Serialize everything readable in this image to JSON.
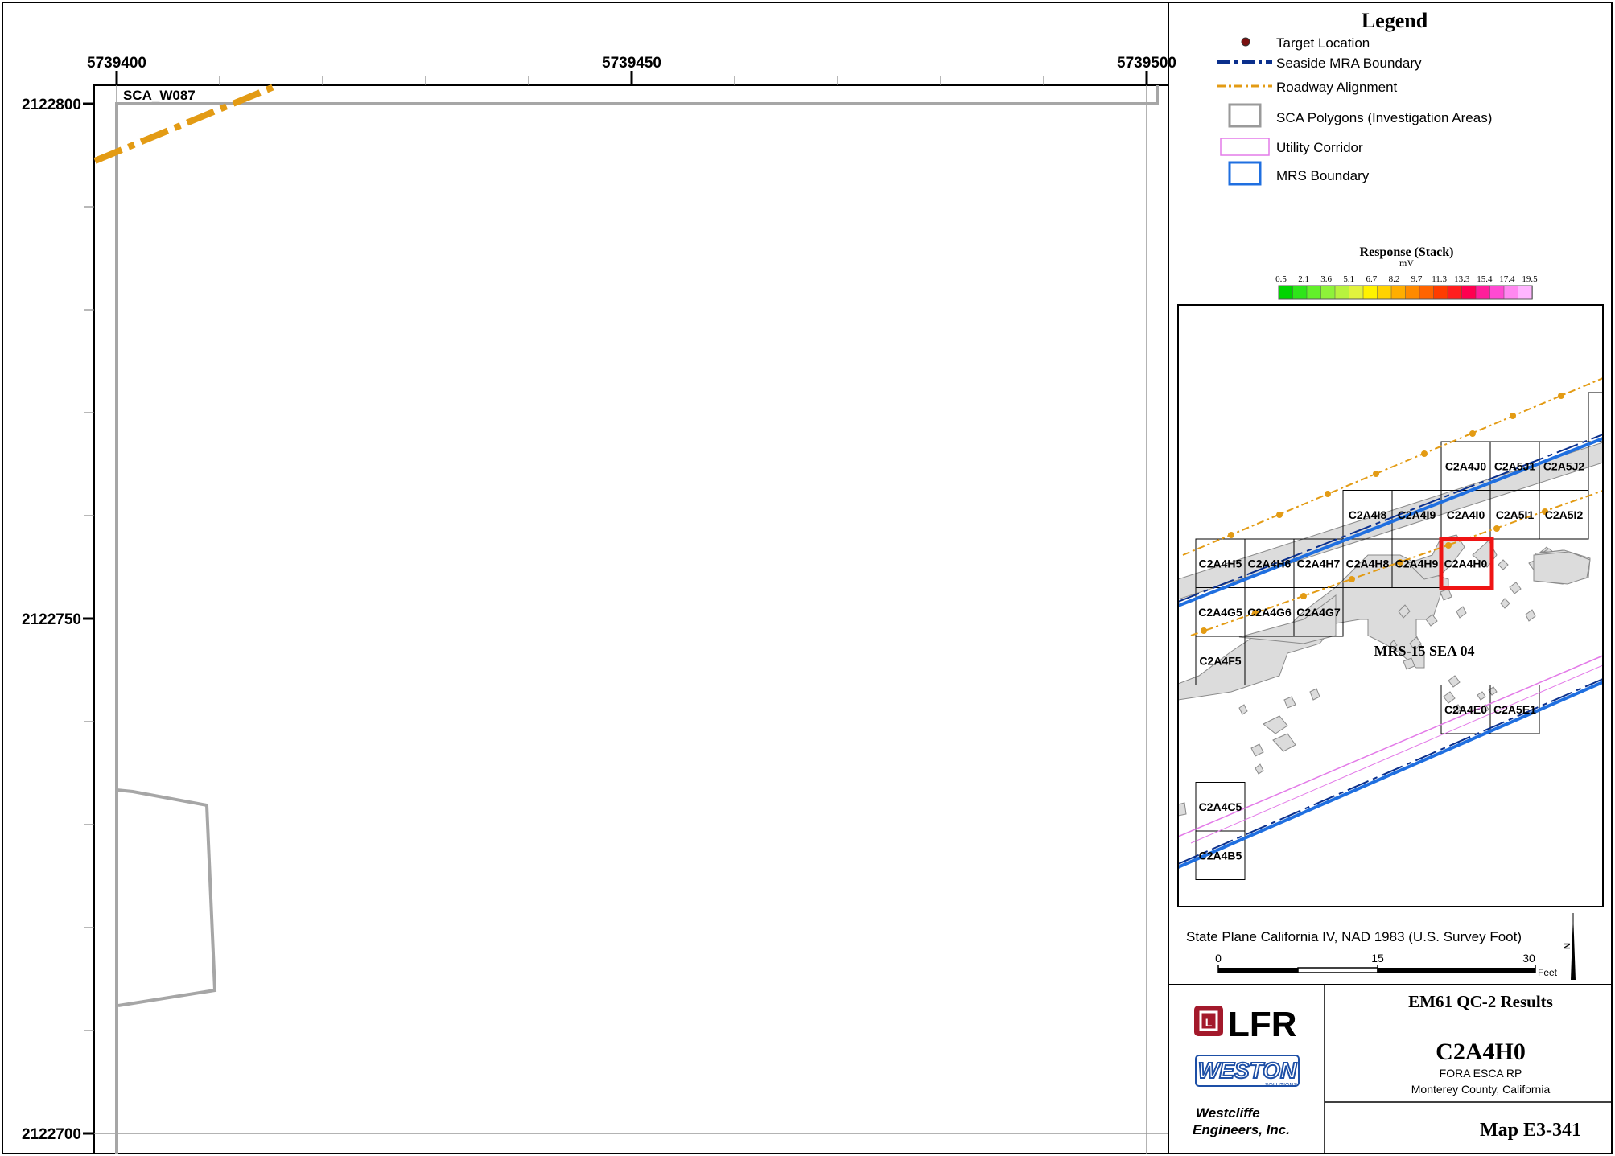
{
  "main_map": {
    "x_ticks": [
      "5739400",
      "5739450",
      "5739500"
    ],
    "y_ticks": [
      "2122800",
      "2122750",
      "2122700"
    ],
    "polygon_label": "SCA_W087"
  },
  "legend": {
    "title": "Legend",
    "items": [
      {
        "label": "Target Location",
        "symbol": "dot-icon",
        "color": "#7a1010"
      },
      {
        "label": "Seaside MRA Boundary",
        "symbol": "dash-dot-line-icon",
        "color": "#0a2f8c"
      },
      {
        "label": "Roadway Alignment",
        "symbol": "dash-dot-line-icon",
        "color": "#e39b14"
      },
      {
        "label": "SCA Polygons (Investigation Areas)",
        "symbol": "gray-box-icon",
        "color": "#9a9a9a"
      },
      {
        "label": "Utility Corridor",
        "symbol": "pink-box-icon",
        "color": "#e37ae8"
      },
      {
        "label": "MRS Boundary",
        "symbol": "blue-box-icon",
        "color": "#1f6fe0"
      }
    ]
  },
  "color_ramp": {
    "title": "Response (Stack)",
    "unit": "mV",
    "ticks": [
      "0.5",
      "2.1",
      "3.6",
      "5.1",
      "6.7",
      "8.2",
      "9.7",
      "11.3",
      "13.3",
      "15.4",
      "17.4",
      "19.5"
    ],
    "colors": [
      "#00d400",
      "#2ee51a",
      "#62f02a",
      "#8ef23a",
      "#b8f23e",
      "#e2f23e",
      "#fff200",
      "#ffd200",
      "#ffae00",
      "#ff8a00",
      "#ff6400",
      "#ff3c00",
      "#ff1e1e",
      "#ff0050",
      "#ff1e9a",
      "#ff4ad2",
      "#ff88f0",
      "#ffb6ff"
    ]
  },
  "inset": {
    "grid_labels": [
      {
        "text": "C2A4J0",
        "col": 5,
        "row": 0
      },
      {
        "text": "C2A5J1",
        "col": 6,
        "row": 0
      },
      {
        "text": "C2A5J2",
        "col": 7,
        "row": 0
      },
      {
        "text": "C2A4I8",
        "col": 3,
        "row": 1
      },
      {
        "text": "C2A4I9",
        "col": 4,
        "row": 1
      },
      {
        "text": "C2A4I0",
        "col": 5,
        "row": 1
      },
      {
        "text": "C2A5I1",
        "col": 6,
        "row": 1
      },
      {
        "text": "C2A5I2",
        "col": 7,
        "row": 1
      },
      {
        "text": "C2A4H5",
        "col": 0,
        "row": 2
      },
      {
        "text": "C2A4H6",
        "col": 1,
        "row": 2
      },
      {
        "text": "C2A4H7",
        "col": 2,
        "row": 2
      },
      {
        "text": "C2A4H8",
        "col": 3,
        "row": 2
      },
      {
        "text": "C2A4H9",
        "col": 4,
        "row": 2
      },
      {
        "text": "C2A4H0",
        "col": 5,
        "row": 2
      },
      {
        "text": "C2A4G5",
        "col": 0,
        "row": 3
      },
      {
        "text": "C2A4G6",
        "col": 1,
        "row": 3
      },
      {
        "text": "C2A4G7",
        "col": 2,
        "row": 3
      },
      {
        "text": "C2A4F5",
        "col": 0,
        "row": 4
      },
      {
        "text": "C2A4E0",
        "col": 5,
        "row": 5
      },
      {
        "text": "C2A5E1",
        "col": 6,
        "row": 5
      },
      {
        "text": "C2A4C5",
        "col": 0,
        "row": 7
      },
      {
        "text": "C2A4B5",
        "col": 0,
        "row": 8
      }
    ],
    "highlighted": "C2A4H0",
    "area_label": "MRS-15 SEA 04"
  },
  "projection": "State Plane California IV, NAD 1983 (U.S. Survey Foot)",
  "scale_bar": {
    "ticks": [
      "0",
      "15",
      "30"
    ],
    "unit": "Feet"
  },
  "north_arrow": "N",
  "title_block": {
    "title": "EM61 QC-2 Results",
    "grid_id": "C2A4H0",
    "project": "FORA ESCA RP",
    "location": "Monterey County, California",
    "map_number": "Map E3-341",
    "logo_lfr": "LFR",
    "logo_weston": "WESTON",
    "logo_weston_sub": "SOLUTIONS",
    "company_line1": "Westcliffe",
    "company_line2": "Engineers, Inc."
  }
}
